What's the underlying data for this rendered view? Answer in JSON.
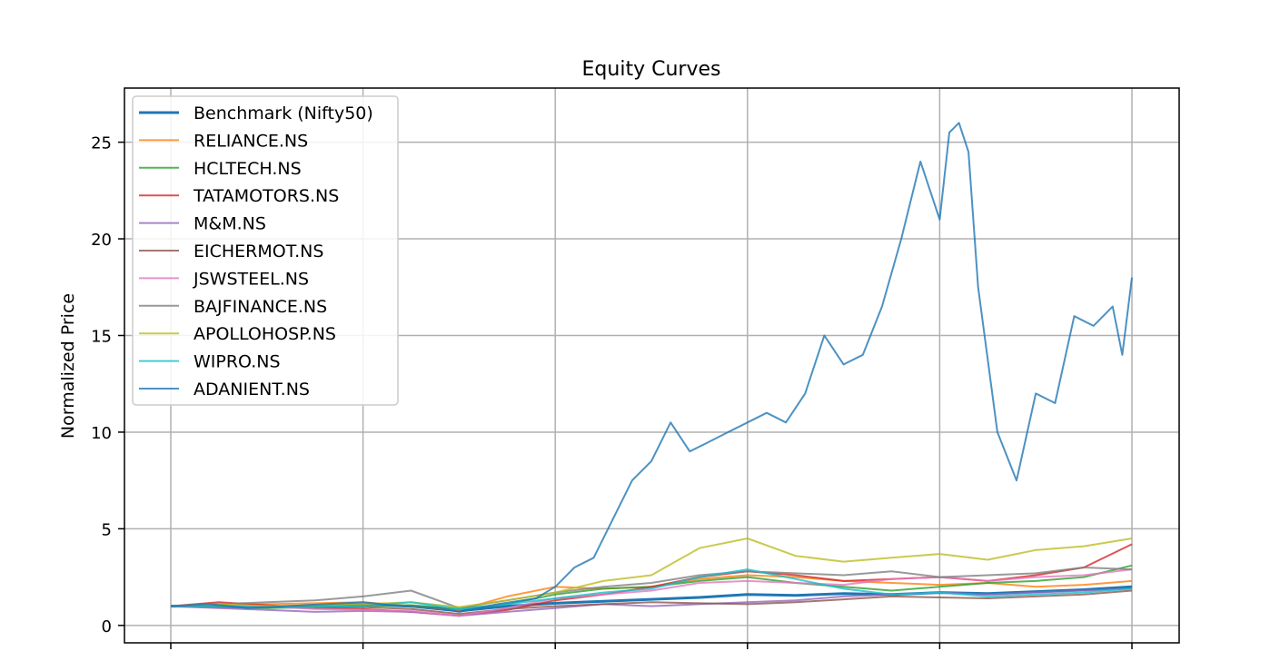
{
  "chart_data": {
    "type": "line",
    "title": "Equity Curves",
    "xlabel": "",
    "ylabel": "Normalized Price",
    "x_range": [
      0,
      1
    ],
    "ylim": [
      -0.9,
      27.8
    ],
    "yticks": [
      0,
      5,
      10,
      15,
      20,
      25
    ],
    "xticks": [
      0,
      0.2,
      0.4,
      0.6,
      0.8,
      1.0
    ],
    "xtick_labels": [
      "",
      "",
      "",
      "",
      "",
      ""
    ],
    "grid": true,
    "legend_position": "top-left",
    "series": [
      {
        "name": "Benchmark (Nifty50)",
        "color": "#1f77b4",
        "width": 3,
        "opacity": 1.0,
        "x": [
          0,
          0.05,
          0.1,
          0.15,
          0.2,
          0.25,
          0.3,
          0.35,
          0.4,
          0.45,
          0.5,
          0.55,
          0.6,
          0.65,
          0.7,
          0.75,
          0.8,
          0.85,
          0.9,
          0.95,
          1.0
        ],
        "y": [
          1.0,
          1.0,
          0.95,
          1.02,
          1.08,
          1.0,
          0.75,
          1.0,
          1.15,
          1.25,
          1.35,
          1.45,
          1.6,
          1.55,
          1.65,
          1.6,
          1.7,
          1.65,
          1.75,
          1.85,
          2.0
        ]
      },
      {
        "name": "RELIANCE.NS",
        "color": "#ff7f0e",
        "width": 2,
        "opacity": 0.8,
        "x": [
          0,
          0.05,
          0.1,
          0.15,
          0.2,
          0.25,
          0.3,
          0.35,
          0.4,
          0.45,
          0.5,
          0.55,
          0.6,
          0.65,
          0.7,
          0.75,
          0.8,
          0.85,
          0.9,
          0.95,
          1.0
        ],
        "y": [
          1.0,
          1.05,
          1.1,
          1.15,
          1.2,
          1.0,
          0.8,
          1.5,
          2.0,
          1.9,
          2.0,
          2.4,
          2.6,
          2.5,
          2.3,
          2.2,
          2.1,
          2.2,
          2.0,
          2.1,
          2.3
        ]
      },
      {
        "name": "HCLTECH.NS",
        "color": "#2ca02c",
        "width": 2,
        "opacity": 0.8,
        "x": [
          0,
          0.05,
          0.1,
          0.15,
          0.2,
          0.25,
          0.3,
          0.35,
          0.4,
          0.45,
          0.5,
          0.55,
          0.6,
          0.65,
          0.7,
          0.75,
          0.8,
          0.85,
          0.9,
          0.95,
          1.0
        ],
        "y": [
          1.0,
          0.95,
          0.9,
          0.95,
          1.0,
          1.05,
          0.85,
          1.1,
          1.6,
          1.9,
          2.0,
          2.3,
          2.5,
          2.2,
          2.0,
          1.8,
          2.0,
          2.2,
          2.3,
          2.5,
          3.1
        ]
      },
      {
        "name": "TATAMOTORS.NS",
        "color": "#d62728",
        "width": 2,
        "opacity": 0.8,
        "x": [
          0,
          0.05,
          0.1,
          0.15,
          0.2,
          0.25,
          0.3,
          0.35,
          0.4,
          0.45,
          0.5,
          0.55,
          0.6,
          0.65,
          0.7,
          0.75,
          0.8,
          0.85,
          0.9,
          0.95,
          1.0
        ],
        "y": [
          1.0,
          1.2,
          1.05,
          0.9,
          0.85,
          0.7,
          0.5,
          0.8,
          1.3,
          1.6,
          2.0,
          2.5,
          2.8,
          2.6,
          2.3,
          2.4,
          2.5,
          2.3,
          2.6,
          3.0,
          4.2
        ]
      },
      {
        "name": "M&M.NS",
        "color": "#9467bd",
        "width": 2,
        "opacity": 0.8,
        "x": [
          0,
          0.05,
          0.1,
          0.15,
          0.2,
          0.25,
          0.3,
          0.35,
          0.4,
          0.45,
          0.5,
          0.55,
          0.6,
          0.65,
          0.7,
          0.75,
          0.8,
          0.85,
          0.9,
          0.95,
          1.0
        ],
        "y": [
          1.0,
          0.9,
          0.8,
          0.7,
          0.75,
          0.7,
          0.5,
          0.7,
          0.9,
          1.1,
          1.0,
          1.1,
          1.2,
          1.3,
          1.5,
          1.6,
          1.7,
          1.6,
          1.7,
          1.8,
          1.9
        ]
      },
      {
        "name": "EICHERMOT.NS",
        "color": "#8c564b",
        "width": 2,
        "opacity": 0.8,
        "x": [
          0,
          0.05,
          0.1,
          0.15,
          0.2,
          0.25,
          0.3,
          0.35,
          0.4,
          0.45,
          0.5,
          0.55,
          0.6,
          0.65,
          0.7,
          0.75,
          0.8,
          0.85,
          0.9,
          0.95,
          1.0
        ],
        "y": [
          1.0,
          1.05,
          0.95,
          0.9,
          0.95,
          0.85,
          0.6,
          0.85,
          1.0,
          1.1,
          1.2,
          1.15,
          1.1,
          1.2,
          1.35,
          1.5,
          1.45,
          1.4,
          1.5,
          1.6,
          1.8
        ]
      },
      {
        "name": "JSWSTEEL.NS",
        "color": "#e377c2",
        "width": 2,
        "opacity": 0.8,
        "x": [
          0,
          0.05,
          0.1,
          0.15,
          0.2,
          0.25,
          0.3,
          0.35,
          0.4,
          0.45,
          0.5,
          0.55,
          0.6,
          0.65,
          0.7,
          0.75,
          0.8,
          0.85,
          0.9,
          0.95,
          1.0
        ],
        "y": [
          1.0,
          1.1,
          1.0,
          0.85,
          0.8,
          0.75,
          0.5,
          0.9,
          1.4,
          1.6,
          1.8,
          2.2,
          2.3,
          2.2,
          2.1,
          2.4,
          2.5,
          2.3,
          2.5,
          2.6,
          2.9
        ]
      },
      {
        "name": "BAJFINANCE.NS",
        "color": "#7f7f7f",
        "width": 2,
        "opacity": 0.8,
        "x": [
          0,
          0.05,
          0.1,
          0.15,
          0.2,
          0.25,
          0.3,
          0.35,
          0.4,
          0.45,
          0.5,
          0.55,
          0.6,
          0.65,
          0.7,
          0.75,
          0.8,
          0.85,
          0.9,
          0.95,
          1.0
        ],
        "y": [
          1.0,
          1.1,
          1.2,
          1.3,
          1.5,
          1.8,
          0.9,
          1.3,
          1.7,
          2.0,
          2.2,
          2.6,
          2.8,
          2.7,
          2.6,
          2.8,
          2.5,
          2.6,
          2.7,
          3.0,
          2.9
        ]
      },
      {
        "name": "APOLLOHOSP.NS",
        "color": "#bcbd22",
        "width": 2,
        "opacity": 0.8,
        "x": [
          0,
          0.05,
          0.1,
          0.15,
          0.2,
          0.25,
          0.3,
          0.35,
          0.4,
          0.45,
          0.5,
          0.55,
          0.6,
          0.65,
          0.7,
          0.75,
          0.8,
          0.85,
          0.9,
          0.95,
          1.0
        ],
        "y": [
          1.0,
          1.1,
          1.0,
          1.05,
          1.1,
          1.2,
          0.95,
          1.3,
          1.7,
          2.3,
          2.6,
          4.0,
          4.5,
          3.6,
          3.3,
          3.5,
          3.7,
          3.4,
          3.9,
          4.1,
          4.5
        ]
      },
      {
        "name": "WIPRO.NS",
        "color": "#17becf",
        "width": 2,
        "opacity": 0.8,
        "x": [
          0,
          0.05,
          0.1,
          0.15,
          0.2,
          0.25,
          0.3,
          0.35,
          0.4,
          0.45,
          0.5,
          0.55,
          0.6,
          0.65,
          0.7,
          0.75,
          0.8,
          0.85,
          0.9,
          0.95,
          1.0
        ],
        "y": [
          1.0,
          1.0,
          0.95,
          0.95,
          1.0,
          1.2,
          0.85,
          1.1,
          1.4,
          1.7,
          1.9,
          2.5,
          2.9,
          2.4,
          1.9,
          1.6,
          1.7,
          1.5,
          1.6,
          1.7,
          1.9
        ]
      },
      {
        "name": "ADANIENT.NS",
        "color": "#1f77b4",
        "width": 2,
        "opacity": 0.8,
        "x": [
          0,
          0.04,
          0.08,
          0.12,
          0.16,
          0.2,
          0.24,
          0.28,
          0.3,
          0.34,
          0.38,
          0.4,
          0.42,
          0.44,
          0.46,
          0.48,
          0.5,
          0.52,
          0.54,
          0.56,
          0.58,
          0.6,
          0.62,
          0.64,
          0.66,
          0.68,
          0.7,
          0.72,
          0.74,
          0.76,
          0.78,
          0.8,
          0.81,
          0.82,
          0.83,
          0.84,
          0.86,
          0.88,
          0.9,
          0.92,
          0.94,
          0.96,
          0.98,
          0.99,
          1.0
        ],
        "y": [
          1.0,
          1.1,
          0.9,
          1.0,
          1.1,
          1.2,
          1.0,
          0.9,
          0.7,
          1.1,
          1.4,
          2.0,
          3.0,
          3.5,
          5.5,
          7.5,
          8.5,
          10.5,
          9.0,
          9.5,
          10.0,
          10.5,
          11.0,
          10.5,
          12.0,
          15.0,
          13.5,
          14.0,
          16.5,
          20.0,
          24.0,
          21.0,
          25.5,
          26.0,
          24.5,
          17.5,
          10.0,
          7.5,
          12.0,
          11.5,
          16.0,
          15.5,
          16.5,
          14.0,
          18.0
        ]
      }
    ]
  }
}
